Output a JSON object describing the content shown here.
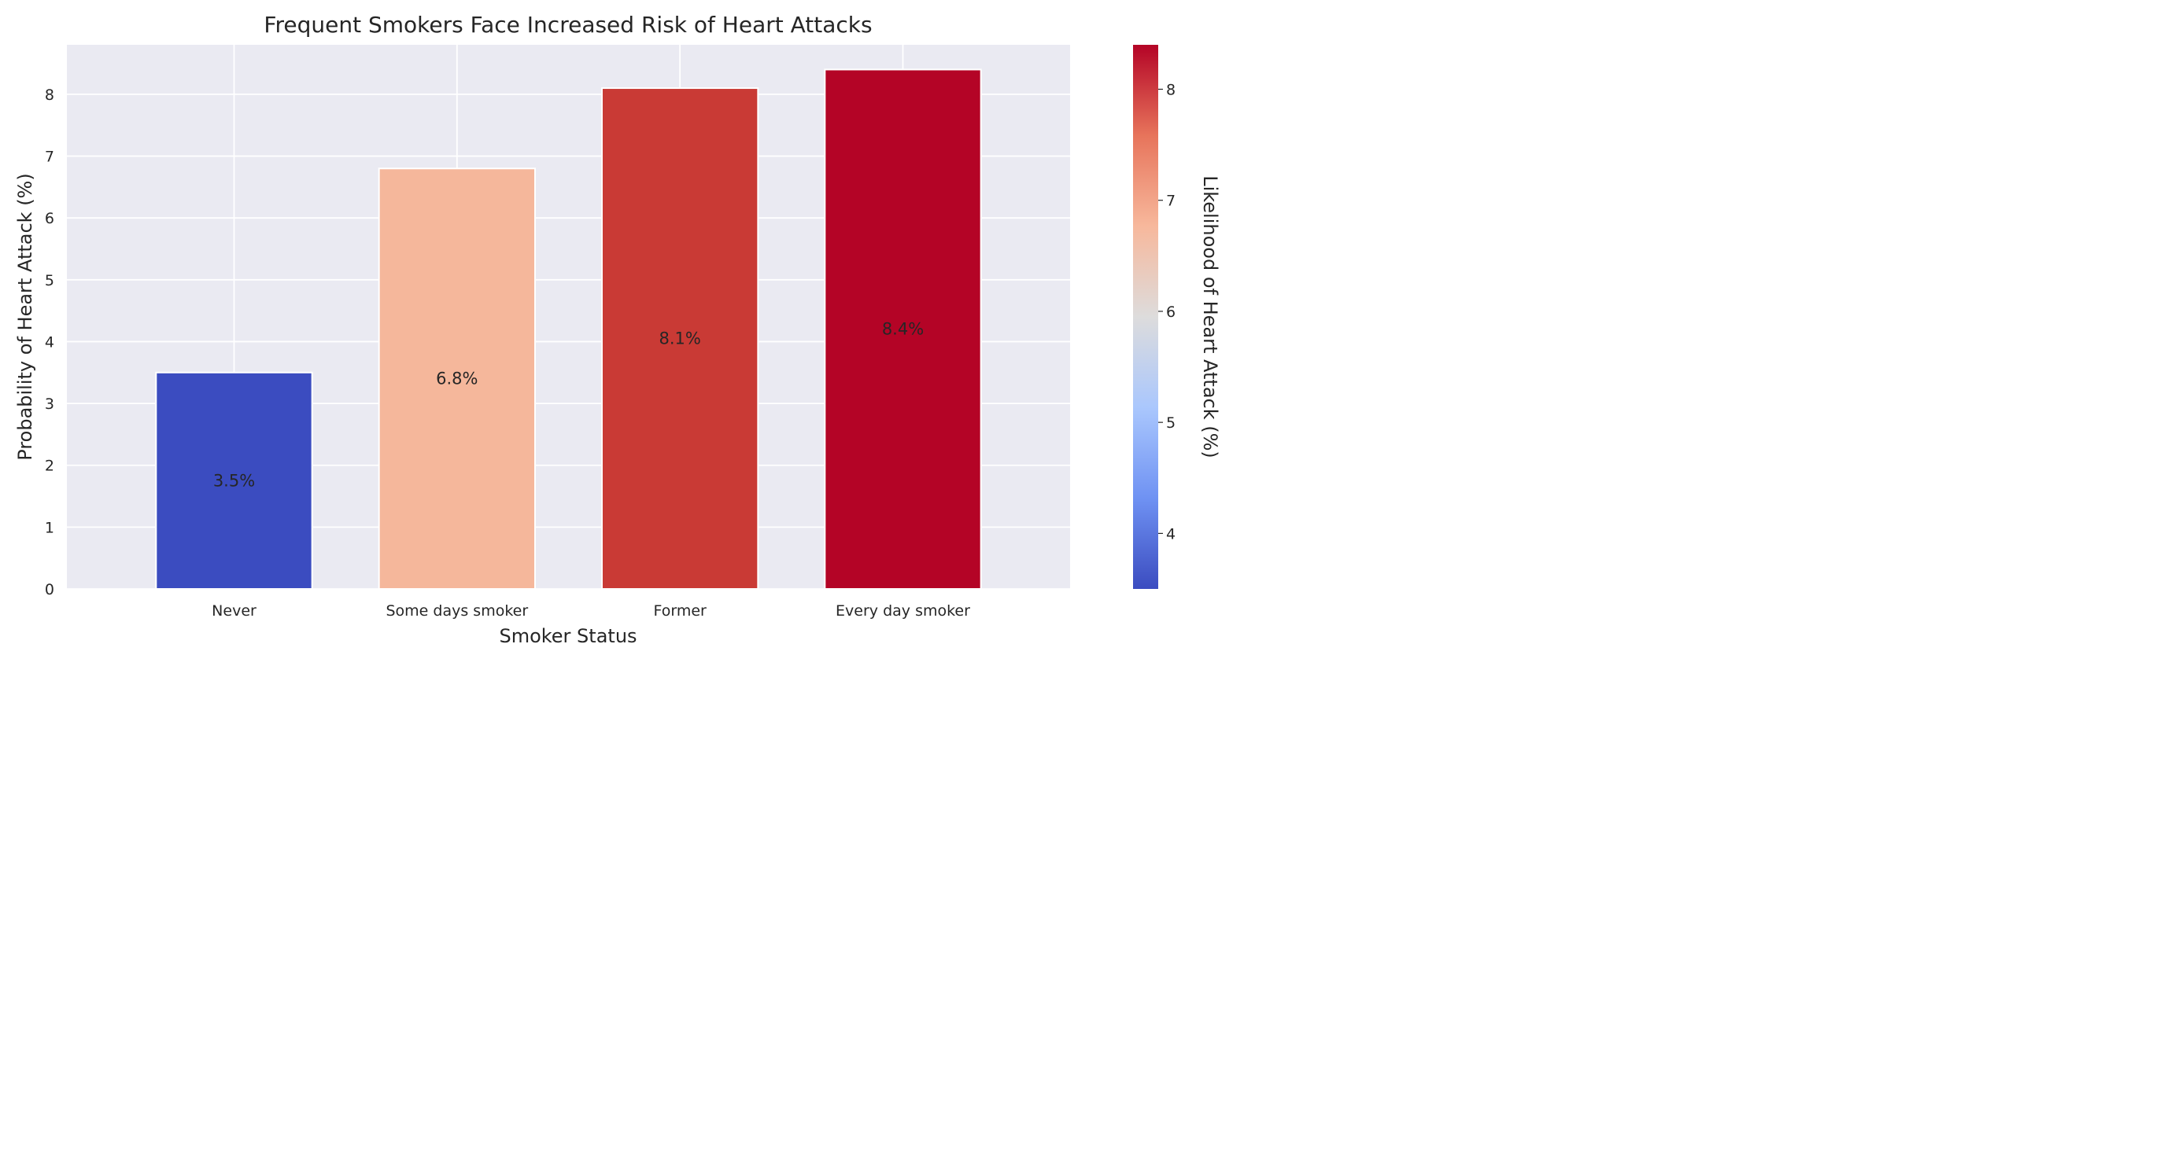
{
  "chart_data": {
    "type": "bar",
    "title": "Frequent Smokers Face Increased Risk of Heart Attacks",
    "xlabel": "Smoker Status",
    "ylabel": "Probability of Heart Attack (%)",
    "categories": [
      "Never",
      "Some days smoker",
      "Former",
      "Every day smoker"
    ],
    "values": [
      3.5,
      6.8,
      8.1,
      8.4
    ],
    "data_labels": [
      "3.5%",
      "6.8%",
      "8.1%",
      "8.4%"
    ],
    "ylim": [
      0,
      8.8
    ],
    "yticks": [
      0,
      1,
      2,
      3,
      4,
      5,
      6,
      7,
      8
    ],
    "grid": true,
    "colormap": "coolwarm",
    "bar_colors": [
      "#3b4cc0",
      "#f5b79b",
      "#c93a35",
      "#b40426"
    ],
    "colorbar": {
      "label": "Likelihood of Heart Attack (%)",
      "range": [
        3.5,
        8.4
      ],
      "ticks": [
        4,
        5,
        6,
        7,
        8
      ],
      "gradient_colors": [
        "#3b4cc0",
        "#6f92f3",
        "#aac7fd",
        "#dddcdc",
        "#f7b89c",
        "#e7745b",
        "#b40426"
      ]
    },
    "background_color": "#eaeaf2"
  }
}
